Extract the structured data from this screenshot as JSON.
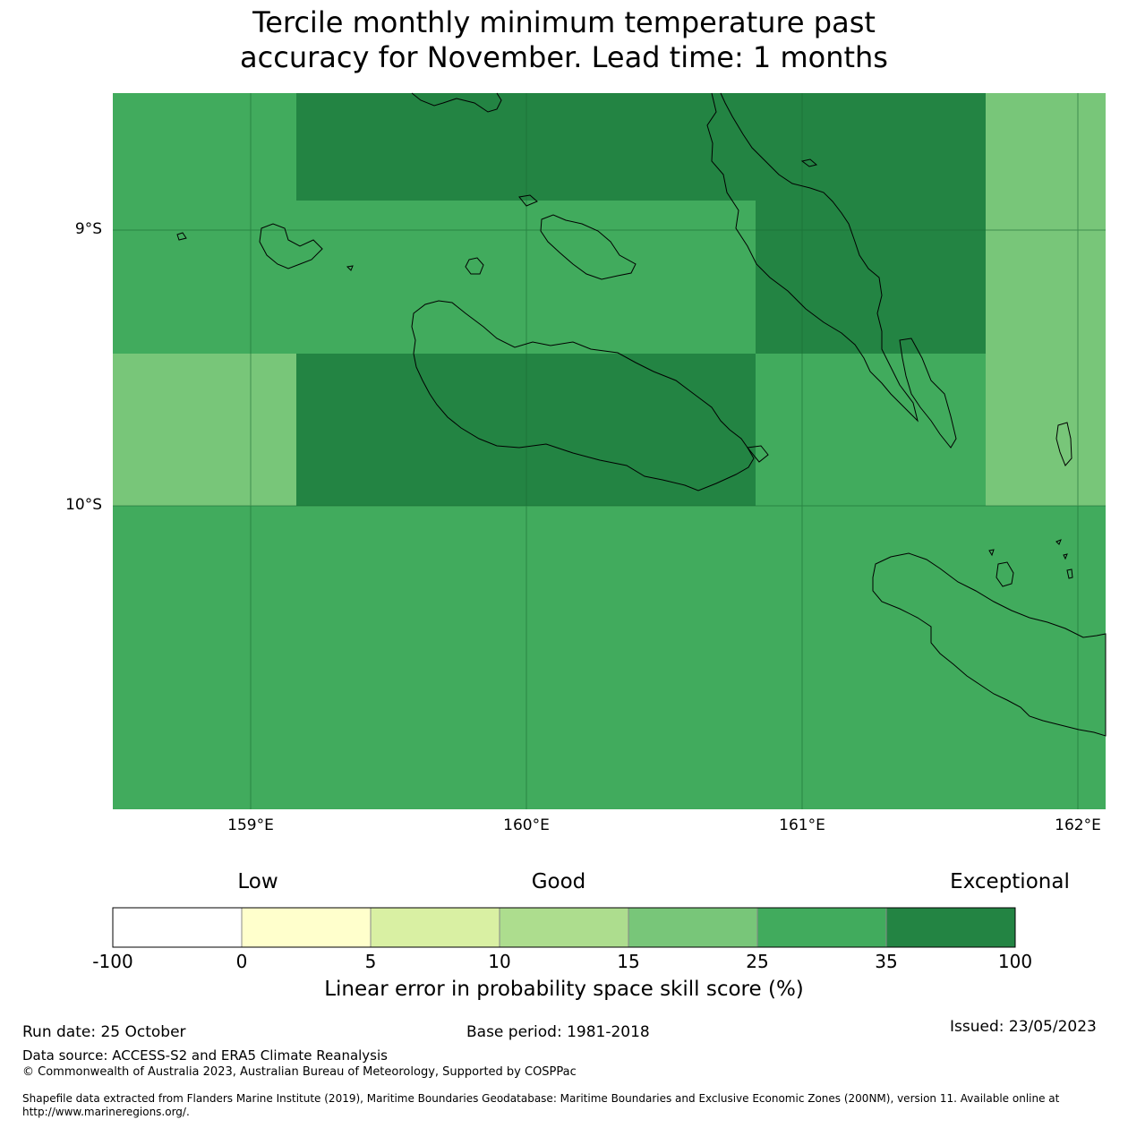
{
  "title": {
    "line1": "Tercile monthly minimum temperature past",
    "line2": "accuracy for November. Lead time: 1 months"
  },
  "map": {
    "lat_labels": [
      "9°S",
      "10°S"
    ],
    "lon_labels": [
      "159°E",
      "160°E",
      "161°E",
      "162°E"
    ],
    "colors": {
      "class_15_25": "#78c679",
      "class_25_35": "#41ab5d",
      "class_35_100": "#238443",
      "coastline": "#000000"
    },
    "skill_classes_by_region": [
      {
        "region": "top-left",
        "class": "25-35"
      },
      {
        "region": "top-center",
        "class": "35-100"
      },
      {
        "region": "top-right",
        "class": "15-25"
      },
      {
        "region": "middle-left",
        "class": "25-35"
      },
      {
        "region": "middle-right-east-coast",
        "class": "35-100"
      },
      {
        "region": "lower-left",
        "class": "15-25"
      },
      {
        "region": "lower-center",
        "class": "35-100"
      },
      {
        "region": "lower-right",
        "class": "25-35"
      },
      {
        "region": "bottom",
        "class": "25-35"
      }
    ]
  },
  "colorbar": {
    "headers": [
      "Low",
      "Good",
      "Exceptional"
    ],
    "ticks": [
      "-100",
      "0",
      "5",
      "10",
      "15",
      "25",
      "35",
      "100"
    ],
    "colors": [
      "#ffffff",
      "#ffffcc",
      "#d9f0a3",
      "#addd8e",
      "#78c679",
      "#41ab5d",
      "#238443"
    ],
    "label": "Linear error in probability space skill score (%)"
  },
  "footer": {
    "run_date": "Run date: 25 October",
    "base_period": "Base period: 1981-2018",
    "issued": "Issued: 23/05/2023",
    "data_source": "Data source: ACCESS-S2 and ERA5 Climate Reanalysis",
    "copyright": "© Commonwealth of Australia 2023, Australian Bureau of Meteorology, Supported by COSPPac",
    "shapefile": "Shapefile data extracted from Flanders Marine Institute (2019), Maritime Boundaries Geodatabase: Maritime Boundaries and Exclusive Economic Zones (200NM), version 11. Available online at http://www.marineregions.org/."
  }
}
